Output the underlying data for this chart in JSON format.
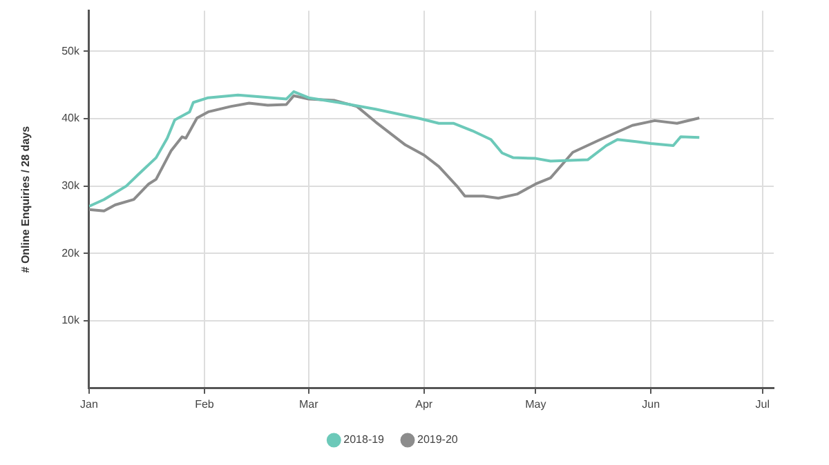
{
  "chart_data": {
    "type": "line",
    "ylabel": "# Online Enquiries / 28 days",
    "xlim": [
      "--01-01",
      "--07-04"
    ],
    "xticks": [
      {
        "value": "--01-01",
        "label": "Jan"
      },
      {
        "value": "--02-01",
        "label": "Feb"
      },
      {
        "value": "--03-01",
        "label": "Mar"
      },
      {
        "value": "--04-01",
        "label": "Apr"
      },
      {
        "value": "--05-01",
        "label": "May"
      },
      {
        "value": "--06-01",
        "label": "Jun"
      },
      {
        "value": "--07-01",
        "label": "Jul"
      }
    ],
    "ylim": [
      0,
      56000
    ],
    "yticks": [
      {
        "value": 10000,
        "label": "10k"
      },
      {
        "value": 20000,
        "label": "20k"
      },
      {
        "value": 30000,
        "label": "30k"
      },
      {
        "value": 40000,
        "label": "40k"
      },
      {
        "value": 50000,
        "label": "50k"
      }
    ],
    "grid": true,
    "legend": "bottom",
    "marker": "none",
    "line_style": "solid",
    "series": [
      {
        "name": "2018-19",
        "color": "#6cc9b9",
        "x": [
          "--01-01",
          "--01-05",
          "--01-11",
          "--01-14",
          "--01-19",
          "--01-22",
          "--01-24",
          "--01-28",
          "--01-29",
          "--02-02",
          "--02-10",
          "--02-17",
          "--02-23",
          "--02-25",
          "--03-01",
          "--03-09",
          "--03-19",
          "--03-31",
          "--04-05",
          "--04-09",
          "--04-14",
          "--04-19",
          "--04-22",
          "--04-25",
          "--05-01",
          "--05-05",
          "--05-15",
          "--05-20",
          "--05-23",
          "--05-28",
          "--06-01",
          "--06-07",
          "--06-09",
          "--06-14"
        ],
        "values": [
          27000,
          28000,
          30000,
          31600,
          34200,
          37100,
          39800,
          41000,
          42400,
          43100,
          43500,
          43200,
          42900,
          44000,
          43100,
          42400,
          41400,
          40000,
          39300,
          39300,
          38200,
          36900,
          34900,
          34200,
          34100,
          33700,
          33900,
          36000,
          36900,
          36600,
          36300,
          36000,
          37300,
          37200
        ]
      },
      {
        "name": "2019-20",
        "color": "#8c8c8c",
        "x": [
          "--01-01",
          "--01-05",
          "--01-08",
          "--01-13",
          "--01-17",
          "--01-19",
          "--01-23",
          "--01-26",
          "--01-27",
          "--01-30",
          "--02-02",
          "--02-08",
          "--02-13",
          "--02-18",
          "--02-23",
          "--02-25",
          "--03-01",
          "--03-08",
          "--03-14",
          "--03-19",
          "--03-27",
          "--04-01",
          "--04-05",
          "--04-10",
          "--04-12",
          "--04-17",
          "--04-21",
          "--04-26",
          "--05-01",
          "--05-05",
          "--05-11",
          "--05-18",
          "--05-27",
          "--06-02",
          "--06-08",
          "--06-14"
        ],
        "values": [
          26500,
          26300,
          27200,
          28000,
          30300,
          31000,
          35200,
          37300,
          37100,
          40100,
          41000,
          41800,
          42300,
          42000,
          42100,
          43400,
          42900,
          42700,
          41800,
          39500,
          36100,
          34600,
          32900,
          29900,
          28500,
          28500,
          28200,
          28800,
          30300,
          31200,
          35000,
          36800,
          39000,
          39700,
          39300,
          40100
        ]
      }
    ]
  }
}
